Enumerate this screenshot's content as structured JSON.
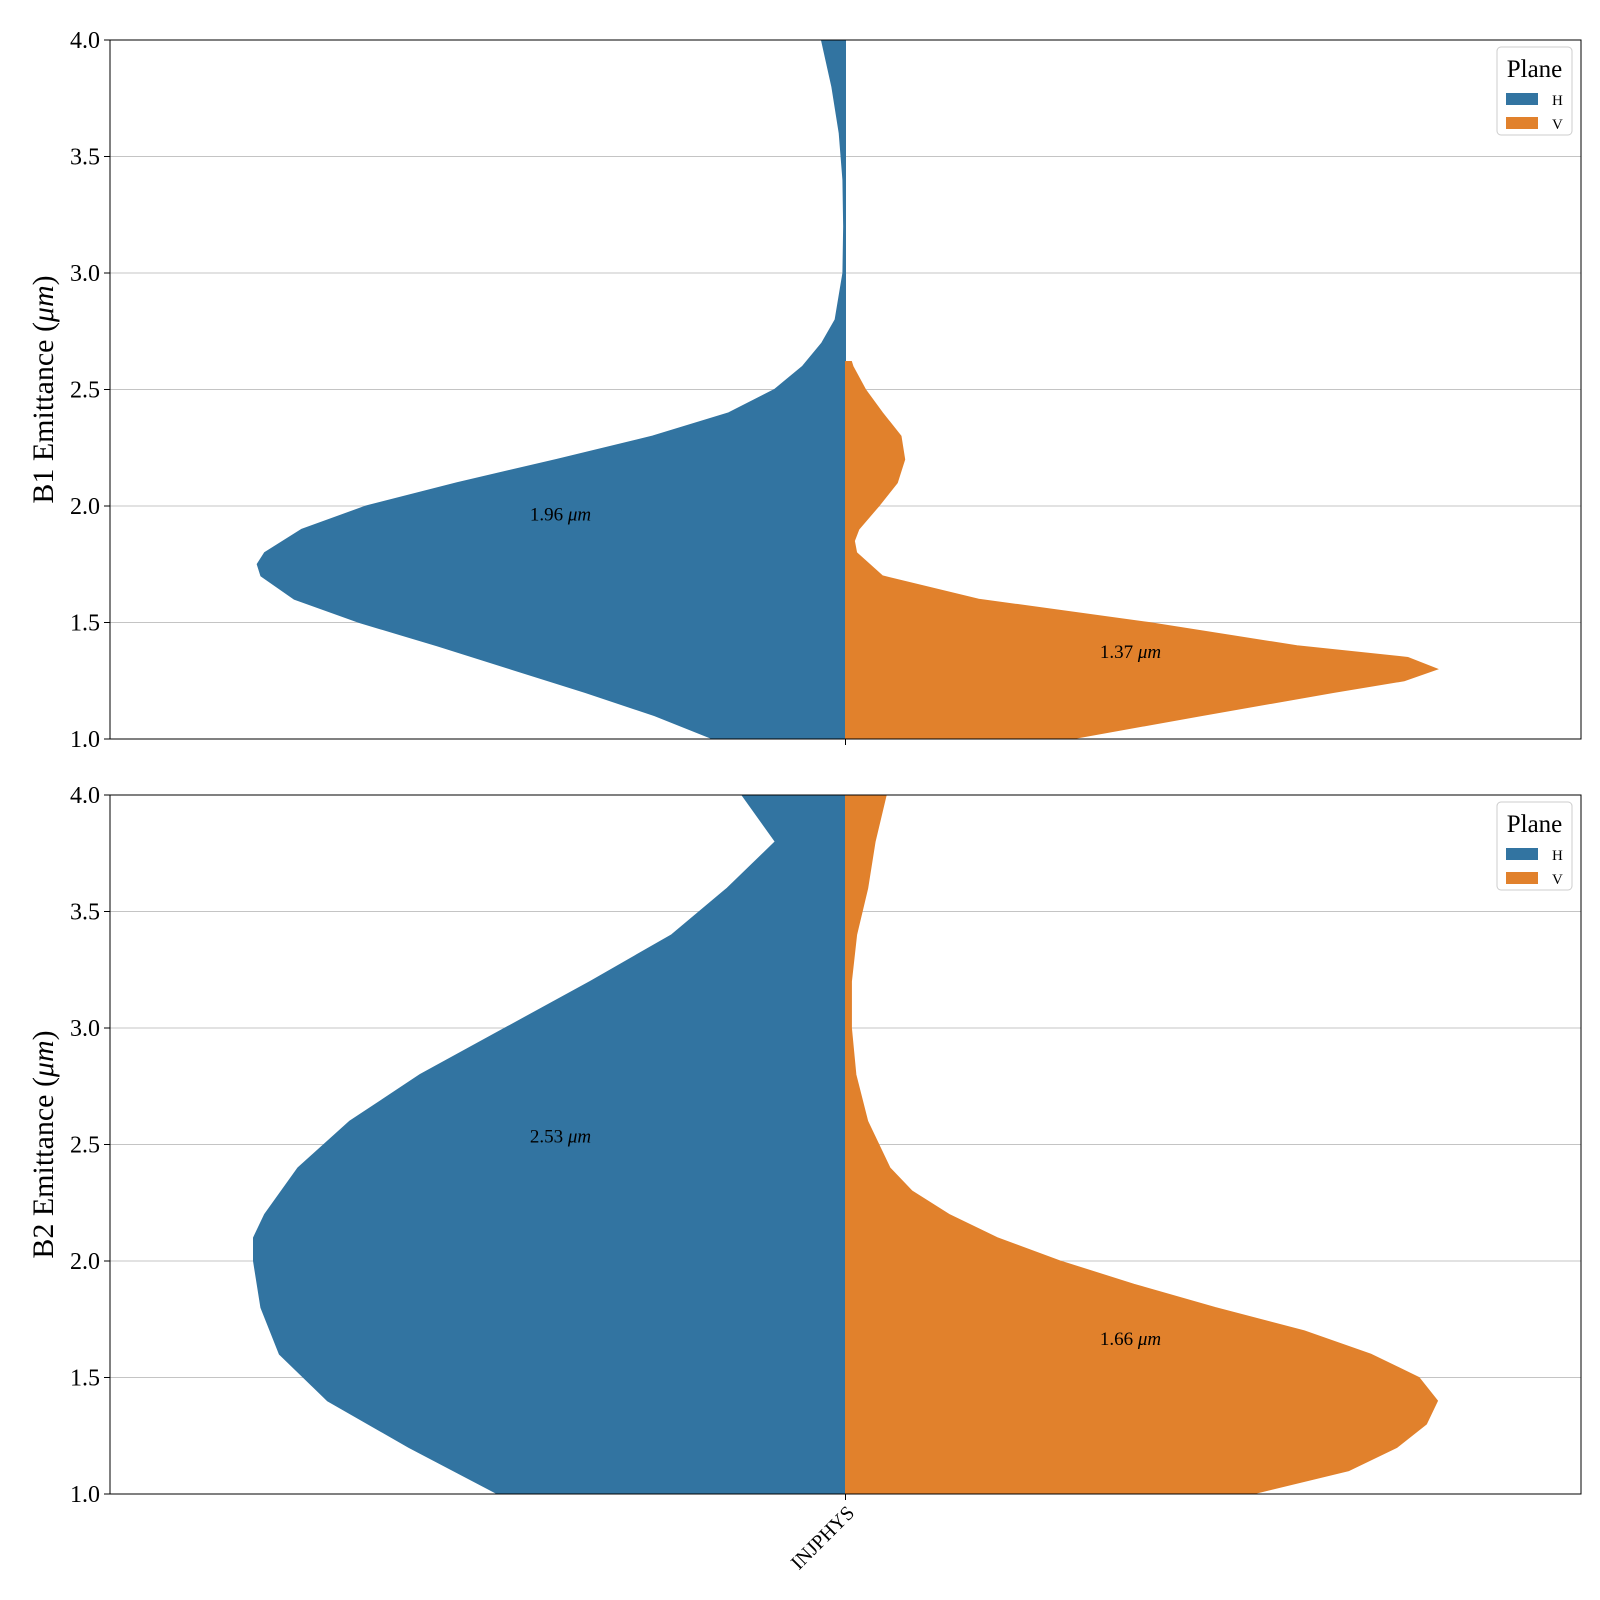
{
  "chart_data": [
    {
      "type": "violin",
      "title": "",
      "xlabel": "",
      "ylabel": "B1 Emittance (μm)",
      "ylabel_main": "B1 Emittance (",
      "ylabel_unit": "μm",
      "ylabel_close": ")",
      "ylim": [
        1.0,
        4.0
      ],
      "yticks": [
        "1.0",
        "1.5",
        "2.0",
        "2.5",
        "3.0",
        "3.5",
        "4.0"
      ],
      "grid": "horizontal",
      "category": "INJPHYS",
      "legend": {
        "title": "Plane",
        "placement": "top-right",
        "entries": [
          "H",
          "V"
        ]
      },
      "series": [
        {
          "name": "H",
          "color": "#3274a1",
          "side": "left",
          "median_label": "1.96",
          "median_label_unit": "μm",
          "median_label_y": 1.96,
          "density": [
            [
              1.0,
              0.179
            ],
            [
              1.1,
              0.258
            ],
            [
              1.2,
              0.352
            ],
            [
              1.3,
              0.452
            ],
            [
              1.4,
              0.552
            ],
            [
              1.5,
              0.657
            ],
            [
              1.6,
              0.745
            ],
            [
              1.7,
              0.79
            ],
            [
              1.75,
              0.795
            ],
            [
              1.8,
              0.785
            ],
            [
              1.9,
              0.735
            ],
            [
              2.0,
              0.648
            ],
            [
              2.1,
              0.525
            ],
            [
              2.2,
              0.39
            ],
            [
              2.3,
              0.261
            ],
            [
              2.4,
              0.158
            ],
            [
              2.5,
              0.096
            ],
            [
              2.6,
              0.058
            ],
            [
              2.7,
              0.032
            ],
            [
              2.8,
              0.014
            ],
            [
              3.0,
              0.0035
            ],
            [
              3.2,
              0.0025
            ],
            [
              3.4,
              0.0035
            ],
            [
              3.6,
              0.0085
            ],
            [
              3.8,
              0.0185
            ],
            [
              4.0,
              0.0325
            ]
          ]
        },
        {
          "name": "V",
          "color": "#e1812c",
          "side": "right",
          "median_label": "1.37",
          "median_label_unit": "μm",
          "median_label_y": 1.37,
          "density": [
            [
              1.0,
              0.305
            ],
            [
              1.1,
              0.48
            ],
            [
              1.2,
              0.66
            ],
            [
              1.25,
              0.755
            ],
            [
              1.3,
              0.8
            ],
            [
              1.35,
              0.76
            ],
            [
              1.4,
              0.61
            ],
            [
              1.5,
              0.41
            ],
            [
              1.6,
              0.18
            ],
            [
              1.7,
              0.05
            ],
            [
              1.8,
              0.015
            ],
            [
              1.85,
              0.012
            ],
            [
              1.9,
              0.018
            ],
            [
              2.0,
              0.045
            ],
            [
              2.1,
              0.07
            ],
            [
              2.2,
              0.08
            ],
            [
              2.3,
              0.075
            ],
            [
              2.4,
              0.05
            ],
            [
              2.5,
              0.027
            ],
            [
              2.6,
              0.01
            ],
            [
              2.62,
              0.008
            ]
          ]
        }
      ]
    },
    {
      "type": "violin",
      "title": "",
      "xlabel": "",
      "ylabel": "B2 Emittance (μm)",
      "ylabel_main": "B2 Emittance (",
      "ylabel_unit": "μm",
      "ylabel_close": ")",
      "ylim": [
        1.0,
        4.0
      ],
      "yticks": [
        "1.0",
        "1.5",
        "2.0",
        "2.5",
        "3.0",
        "3.5",
        "4.0"
      ],
      "grid": "horizontal",
      "category": "INJPHYS",
      "legend": {
        "title": "Plane",
        "placement": "top-right",
        "entries": [
          "H",
          "V"
        ]
      },
      "series": [
        {
          "name": "H",
          "color": "#3274a1",
          "side": "left",
          "median_label": "2.53",
          "median_label_unit": "μm",
          "median_label_y": 2.53,
          "density": [
            [
              1.0,
              0.47
            ],
            [
              1.2,
              0.59
            ],
            [
              1.4,
              0.7
            ],
            [
              1.6,
              0.765
            ],
            [
              1.8,
              0.79
            ],
            [
              2.0,
              0.8
            ],
            [
              2.1,
              0.8
            ],
            [
              2.2,
              0.785
            ],
            [
              2.4,
              0.74
            ],
            [
              2.6,
              0.67
            ],
            [
              2.8,
              0.575
            ],
            [
              3.0,
              0.46
            ],
            [
              3.2,
              0.345
            ],
            [
              3.4,
              0.235
            ],
            [
              3.6,
              0.16
            ],
            [
              3.8,
              0.095
            ],
            [
              4.0,
              0.14
            ]
          ]
        },
        {
          "name": "V",
          "color": "#e1812c",
          "side": "right",
          "median_label": "1.66",
          "median_label_unit": "μm",
          "median_label_y": 1.66,
          "density": [
            [
              1.0,
              0.55
            ],
            [
              1.1,
              0.68
            ],
            [
              1.2,
              0.745
            ],
            [
              1.3,
              0.785
            ],
            [
              1.4,
              0.8
            ],
            [
              1.5,
              0.775
            ],
            [
              1.6,
              0.71
            ],
            [
              1.7,
              0.62
            ],
            [
              1.8,
              0.5
            ],
            [
              1.9,
              0.39
            ],
            [
              2.0,
              0.29
            ],
            [
              2.1,
              0.205
            ],
            [
              2.2,
              0.14
            ],
            [
              2.3,
              0.09
            ],
            [
              2.4,
              0.06
            ],
            [
              2.6,
              0.03
            ],
            [
              2.8,
              0.014
            ],
            [
              3.0,
              0.008
            ],
            [
              3.2,
              0.008
            ],
            [
              3.4,
              0.015
            ],
            [
              3.6,
              0.03
            ],
            [
              3.8,
              0.04
            ],
            [
              4.0,
              0.055
            ]
          ]
        }
      ]
    }
  ]
}
